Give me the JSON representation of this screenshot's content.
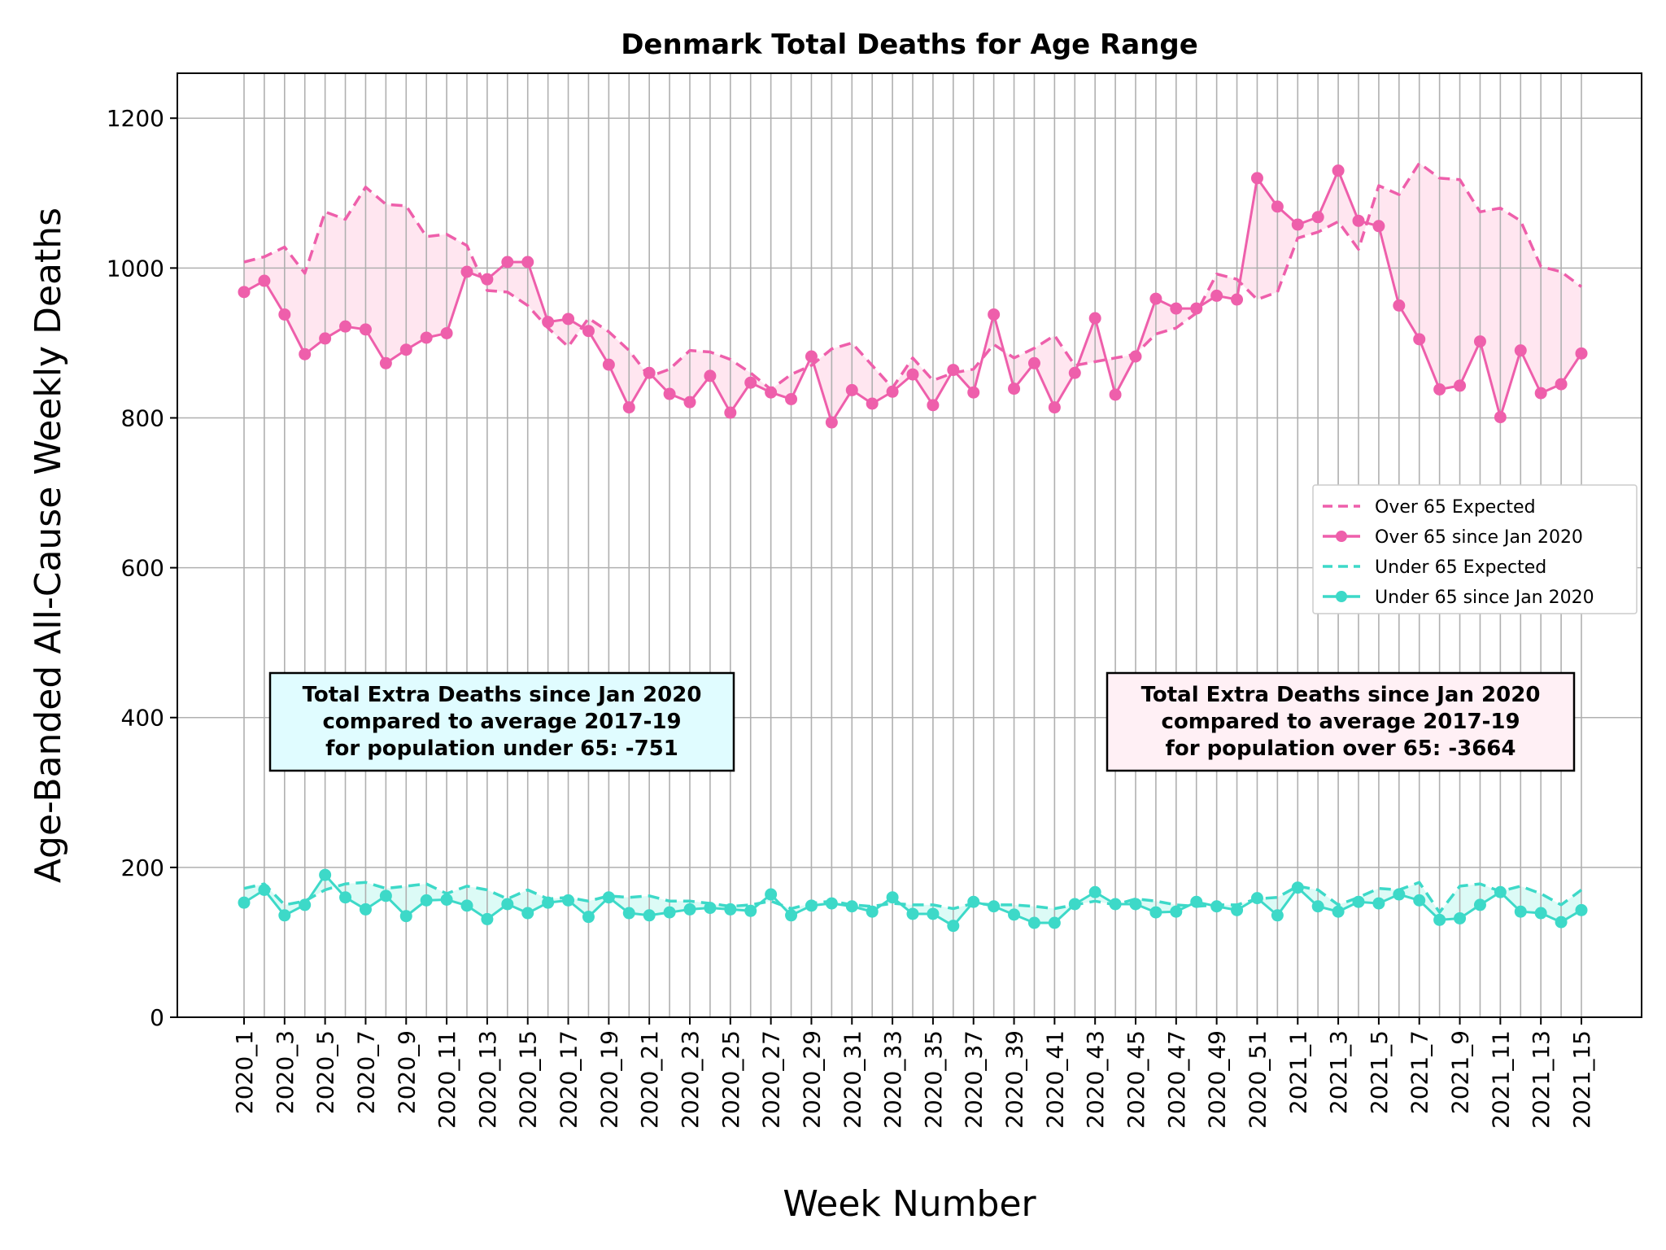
{
  "chart_data": {
    "type": "line",
    "title": "Denmark Total Deaths for Age Range",
    "xlabel": "Week Number",
    "ylabel": "Age-Banded All-Cause Weekly Deaths",
    "ylim": [
      0,
      1260
    ],
    "yticks": [
      0,
      200,
      400,
      600,
      800,
      1000,
      1200
    ],
    "grid": true,
    "legend_position": "center-right",
    "categories": [
      "2020_1",
      "2020_2",
      "2020_3",
      "2020_4",
      "2020_5",
      "2020_6",
      "2020_7",
      "2020_8",
      "2020_9",
      "2020_10",
      "2020_11",
      "2020_12",
      "2020_13",
      "2020_14",
      "2020_15",
      "2020_16",
      "2020_17",
      "2020_18",
      "2020_19",
      "2020_20",
      "2020_21",
      "2020_22",
      "2020_23",
      "2020_24",
      "2020_25",
      "2020_26",
      "2020_27",
      "2020_28",
      "2020_29",
      "2020_30",
      "2020_31",
      "2020_32",
      "2020_33",
      "2020_34",
      "2020_35",
      "2020_36",
      "2020_37",
      "2020_38",
      "2020_39",
      "2020_40",
      "2020_41",
      "2020_42",
      "2020_43",
      "2020_44",
      "2020_45",
      "2020_46",
      "2020_47",
      "2020_48",
      "2020_49",
      "2020_50",
      "2020_51",
      "2020_52",
      "2021_1",
      "2021_2",
      "2021_3",
      "2021_4",
      "2021_5",
      "2021_6",
      "2021_7",
      "2021_8",
      "2021_9",
      "2021_10",
      "2021_11",
      "2021_12",
      "2021_13",
      "2021_14",
      "2021_15"
    ],
    "tick_labels": [
      "2020_1",
      "2020_3",
      "2020_5",
      "2020_7",
      "2020_9",
      "2020_11",
      "2020_13",
      "2020_15",
      "2020_17",
      "2020_19",
      "2020_21",
      "2020_23",
      "2020_25",
      "2020_27",
      "2020_29",
      "2020_31",
      "2020_33",
      "2020_35",
      "2020_37",
      "2020_39",
      "2020_41",
      "2020_43",
      "2020_45",
      "2020_47",
      "2020_49",
      "2020_51",
      "2021_1",
      "2021_3",
      "2021_5",
      "2021_7",
      "2021_9",
      "2021_11",
      "2021_13",
      "2021_15"
    ],
    "series": [
      {
        "name": "Over 65 Expected",
        "style": "dashed",
        "color": "#ee5fab",
        "values": [
          1008,
          1015,
          1028,
          993,
          1075,
          1065,
          1108,
          1085,
          1083,
          1042,
          1045,
          1030,
          970,
          968,
          950,
          920,
          895,
          933,
          915,
          890,
          855,
          865,
          890,
          888,
          878,
          860,
          838,
          858,
          870,
          892,
          900,
          870,
          840,
          880,
          850,
          860,
          865,
          898,
          880,
          893,
          910,
          870,
          875,
          880,
          885,
          912,
          920,
          940,
          992,
          985,
          958,
          968,
          1040,
          1048,
          1062,
          1025,
          1110,
          1098,
          1140,
          1120,
          1118,
          1075,
          1080,
          1063,
          1002,
          995,
          975
        ]
      },
      {
        "name": "Over 65 since Jan 2020",
        "style": "solid-marker",
        "color": "#ee5fab",
        "values": [
          968,
          983,
          938,
          885,
          906,
          922,
          918,
          873,
          891,
          907,
          913,
          995,
          985,
          1008,
          1008,
          928,
          932,
          916,
          871,
          814,
          860,
          832,
          821,
          856,
          807,
          847,
          834,
          825,
          882,
          794,
          837,
          819,
          835,
          858,
          817,
          864,
          834,
          938,
          839,
          873,
          814,
          860,
          933,
          831,
          882,
          959,
          946,
          946,
          963,
          958,
          1120,
          1082,
          1058,
          1068,
          1130,
          1063,
          1056,
          950,
          905,
          838,
          843,
          902,
          801,
          890,
          833,
          845,
          886
        ]
      },
      {
        "name": "Under 65 Expected",
        "style": "dashed",
        "color": "#3dd9c8",
        "values": [
          172,
          178,
          150,
          155,
          170,
          178,
          180,
          172,
          175,
          178,
          165,
          175,
          170,
          158,
          170,
          158,
          160,
          155,
          162,
          160,
          162,
          155,
          155,
          152,
          148,
          150,
          155,
          145,
          152,
          155,
          150,
          148,
          152,
          150,
          150,
          145,
          152,
          150,
          150,
          148,
          145,
          150,
          155,
          150,
          158,
          155,
          150,
          148,
          150,
          150,
          158,
          160,
          175,
          170,
          150,
          160,
          172,
          170,
          180,
          140,
          175,
          178,
          168,
          175,
          165,
          150,
          170
        ]
      },
      {
        "name": "Under 65 since Jan 2020",
        "style": "solid-marker",
        "color": "#3dd9c8",
        "values": [
          153,
          170,
          136,
          150,
          190,
          160,
          144,
          162,
          135,
          156,
          157,
          149,
          131,
          151,
          139,
          153,
          156,
          134,
          160,
          139,
          136,
          140,
          144,
          146,
          144,
          142,
          164,
          136,
          149,
          152,
          148,
          141,
          160,
          138,
          138,
          122,
          154,
          148,
          137,
          126,
          126,
          151,
          167,
          151,
          151,
          140,
          141,
          154,
          148,
          143,
          159,
          136,
          173,
          148,
          141,
          154,
          152,
          164,
          156,
          130,
          132,
          150,
          167,
          141,
          139,
          127,
          143
        ]
      }
    ],
    "annotations": [
      {
        "lines": [
          "Total Extra Deaths since Jan 2020",
          "compared to average 2017-19",
          "for population under 65: -751"
        ],
        "background": "#e0fcff"
      },
      {
        "lines": [
          "Total Extra Deaths since Jan 2020",
          "compared to average 2017-19",
          "for population over 65: -3664"
        ],
        "background": "#fff0f5"
      }
    ],
    "fill_colors": {
      "over": "#ffe6f0",
      "under": "#dcfbf6"
    }
  }
}
